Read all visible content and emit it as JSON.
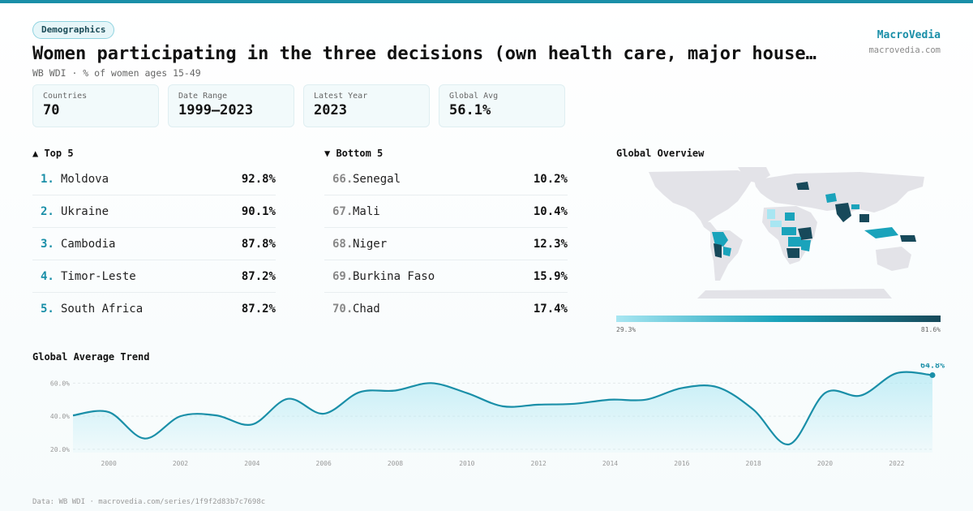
{
  "header": {
    "badge": "Demographics",
    "title": "Women participating in the three decisions (own health care, major house…",
    "subtitle": "WB WDI · % of women ages 15-49",
    "brand_name": "MacroVedia",
    "brand_url": "macrovedia.com"
  },
  "stats": [
    {
      "label": "Countries",
      "value": "70"
    },
    {
      "label": "Date Range",
      "value": "1999–2023"
    },
    {
      "label": "Latest Year",
      "value": "2023"
    },
    {
      "label": "Global Avg",
      "value": "56.1%"
    }
  ],
  "top5": {
    "heading": "▲ Top 5",
    "items": [
      {
        "rank": "1.",
        "name": "Moldova",
        "value": "92.8%"
      },
      {
        "rank": "2.",
        "name": "Ukraine",
        "value": "90.1%"
      },
      {
        "rank": "3.",
        "name": "Cambodia",
        "value": "87.8%"
      },
      {
        "rank": "4.",
        "name": "Timor-Leste",
        "value": "87.2%"
      },
      {
        "rank": "5.",
        "name": "South Africa",
        "value": "87.2%"
      }
    ]
  },
  "bottom5": {
    "heading": "▼ Bottom 5",
    "items": [
      {
        "rank": "66.",
        "name": "Senegal",
        "value": "10.2%"
      },
      {
        "rank": "67.",
        "name": "Mali",
        "value": "10.4%"
      },
      {
        "rank": "68.",
        "name": "Niger",
        "value": "12.3%"
      },
      {
        "rank": "69.",
        "name": "Burkina Faso",
        "value": "15.9%"
      },
      {
        "rank": "70.",
        "name": "Chad",
        "value": "17.4%"
      }
    ]
  },
  "map": {
    "heading": "Global Overview",
    "legend_min": "29.3%",
    "legend_max": "81.6%",
    "colors": {
      "land": "#e3e3e8",
      "low": "#a8e6f2",
      "mid": "#1aa3bb",
      "high": "#17495a"
    }
  },
  "chart_data": {
    "type": "area",
    "title": "Global Average Trend",
    "x": [
      1999,
      2000,
      2001,
      2002,
      2003,
      2004,
      2005,
      2006,
      2007,
      2008,
      2009,
      2010,
      2011,
      2012,
      2013,
      2014,
      2015,
      2016,
      2017,
      2018,
      2019,
      2020,
      2021,
      2022,
      2023
    ],
    "values": [
      40.5,
      42.5,
      26.5,
      40.0,
      40.5,
      35.0,
      50.5,
      41.5,
      54.5,
      55.5,
      60.0,
      54.0,
      46.0,
      47.0,
      47.5,
      50.0,
      50.0,
      57.0,
      57.5,
      44.0,
      23.0,
      54.0,
      52.5,
      66.0,
      64.8
    ],
    "ylim": [
      18,
      68
    ],
    "yticks": [
      20,
      40,
      60
    ],
    "ytick_labels": [
      "20.0%",
      "40.0%",
      "60.0%"
    ],
    "xticks": [
      2000,
      2002,
      2004,
      2006,
      2008,
      2010,
      2012,
      2014,
      2016,
      2018,
      2020,
      2022
    ],
    "xtick_labels": [
      "2000",
      "2002",
      "2004",
      "2006",
      "2008",
      "2010",
      "2012",
      "2014",
      "2016",
      "2018",
      "2020",
      "2022"
    ],
    "last_label": "64.8%",
    "line_color": "#1a8fa8",
    "grid": true
  },
  "footer": "Data: WB WDI · macrovedia.com/series/1f9f2d83b7c7698c"
}
